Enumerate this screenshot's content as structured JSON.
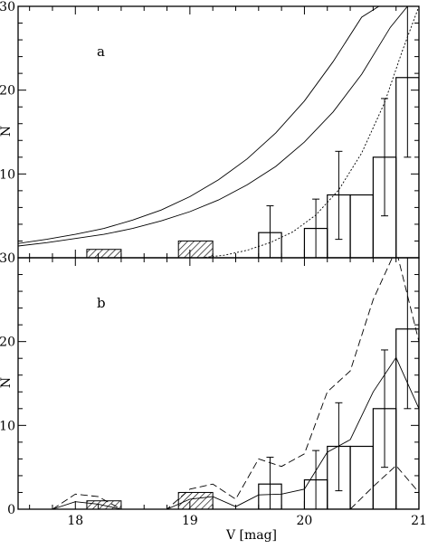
{
  "chart_data": [
    {
      "type": "histogram",
      "panel_label": "a",
      "ylabel": "N",
      "xlim": [
        17.5,
        21.0
      ],
      "ylim": [
        0,
        30
      ],
      "xticks": [
        18,
        19,
        20,
        21
      ],
      "yticks": [
        0,
        10,
        20,
        30
      ],
      "ytick_labels": [
        "",
        "10",
        "20",
        "30"
      ],
      "histogram_bins": [
        {
          "x0": 19.6,
          "x1": 19.8,
          "value": 3
        },
        {
          "x0": 20.0,
          "x1": 20.2,
          "value": 3.5
        },
        {
          "x0": 20.2,
          "x1": 20.4,
          "value": 7.5
        },
        {
          "x0": 20.4,
          "x1": 20.6,
          "value": 7.5
        },
        {
          "x0": 20.6,
          "x1": 20.8,
          "value": 12
        },
        {
          "x0": 20.8,
          "x1": 21.0,
          "value": 21.5
        }
      ],
      "hatched_bins": [
        {
          "x0": 18.1,
          "x1": 18.4,
          "value": 1
        },
        {
          "x0": 18.9,
          "x1": 19.2,
          "value": 2
        }
      ],
      "error_bars": [
        {
          "x": 19.7,
          "low": 0,
          "high": 6.2
        },
        {
          "x": 20.1,
          "low": 0,
          "high": 7
        },
        {
          "x": 20.3,
          "low": 2.2,
          "high": 12.7
        },
        {
          "x": 20.7,
          "low": 5,
          "high": 19
        },
        {
          "x": 20.9,
          "low": 12,
          "high": 30
        }
      ],
      "curves": [
        {
          "style": "solid",
          "x": [
            17.5,
            17.75,
            18.0,
            18.25,
            18.5,
            18.75,
            19.0,
            19.25,
            19.5,
            19.75,
            20.0,
            20.25,
            20.5,
            20.65
          ],
          "y": [
            1.7,
            2.2,
            2.8,
            3.5,
            4.5,
            5.7,
            7.3,
            9.3,
            11.8,
            14.9,
            18.7,
            23.4,
            28.7,
            30.0
          ]
        },
        {
          "style": "solid",
          "x": [
            17.5,
            17.75,
            18.0,
            18.25,
            18.5,
            18.75,
            19.0,
            19.25,
            19.5,
            19.75,
            20.0,
            20.25,
            20.5,
            20.75,
            20.9
          ],
          "y": [
            1.4,
            1.8,
            2.3,
            2.8,
            3.5,
            4.4,
            5.5,
            6.9,
            8.7,
            10.9,
            13.8,
            17.4,
            21.9,
            27.5,
            30.0
          ]
        },
        {
          "style": "dotted",
          "x": [
            19.1,
            19.3,
            19.5,
            19.7,
            19.9,
            20.1,
            20.3,
            20.5,
            20.7,
            20.85,
            21.0
          ],
          "y": [
            0,
            0.3,
            0.9,
            1.8,
            3.1,
            5.1,
            8.1,
            12.5,
            18.5,
            24.5,
            30.0
          ]
        }
      ]
    },
    {
      "type": "histogram",
      "panel_label": "b",
      "xlabel": "V [mag]",
      "ylabel": "N",
      "xlim": [
        17.5,
        21.0
      ],
      "ylim": [
        0,
        30
      ],
      "xticks": [
        18,
        19,
        20,
        21
      ],
      "xtick_labels": [
        "18",
        "19",
        "20",
        "21"
      ],
      "yticks": [
        0,
        10,
        20,
        30
      ],
      "ytick_labels": [
        "0",
        "10",
        "20",
        "30"
      ],
      "histogram_bins": [
        {
          "x0": 19.6,
          "x1": 19.8,
          "value": 3
        },
        {
          "x0": 20.0,
          "x1": 20.2,
          "value": 3.5
        },
        {
          "x0": 20.2,
          "x1": 20.4,
          "value": 7.5
        },
        {
          "x0": 20.4,
          "x1": 20.6,
          "value": 7.5
        },
        {
          "x0": 20.6,
          "x1": 20.8,
          "value": 12
        },
        {
          "x0": 20.8,
          "x1": 21.0,
          "value": 21.5
        }
      ],
      "hatched_bins": [
        {
          "x0": 18.1,
          "x1": 18.4,
          "value": 1
        },
        {
          "x0": 18.9,
          "x1": 19.2,
          "value": 2
        }
      ],
      "error_bars": [
        {
          "x": 19.7,
          "low": 0,
          "high": 6.2
        },
        {
          "x": 20.1,
          "low": 0,
          "high": 7
        },
        {
          "x": 20.3,
          "low": 2.2,
          "high": 12.7
        },
        {
          "x": 20.7,
          "low": 5,
          "high": 19
        },
        {
          "x": 20.9,
          "low": 12,
          "high": 30
        }
      ],
      "curves": [
        {
          "style": "solid",
          "x": [
            17.8,
            18.0,
            18.2,
            18.4,
            18.6,
            18.8,
            19.0,
            19.2,
            19.4,
            19.6,
            19.8,
            20.0,
            20.2,
            20.4,
            20.6,
            20.8,
            21.0
          ],
          "y": [
            0,
            0.9,
            0.6,
            0,
            0,
            0,
            1.2,
            1.5,
            0.3,
            1.7,
            1.8,
            2.4,
            6.8,
            8.3,
            14,
            18.1,
            12
          ]
        },
        {
          "style": "dashed",
          "x": [
            17.8,
            18.0,
            18.2,
            18.4,
            18.6,
            18.8,
            19.0,
            19.2,
            19.4,
            19.6,
            19.8,
            20.0,
            20.2,
            20.4,
            20.6,
            20.8,
            21.0
          ],
          "y": [
            0,
            1.8,
            1.5,
            0,
            0,
            0,
            2.4,
            3,
            1.2,
            6,
            5.1,
            6.6,
            14,
            16.5,
            25,
            31,
            20
          ]
        },
        {
          "style": "dashed",
          "x": [
            20.4,
            20.6,
            20.8,
            21.0
          ],
          "y": [
            0,
            2.7,
            5.2,
            2
          ]
        }
      ]
    }
  ]
}
